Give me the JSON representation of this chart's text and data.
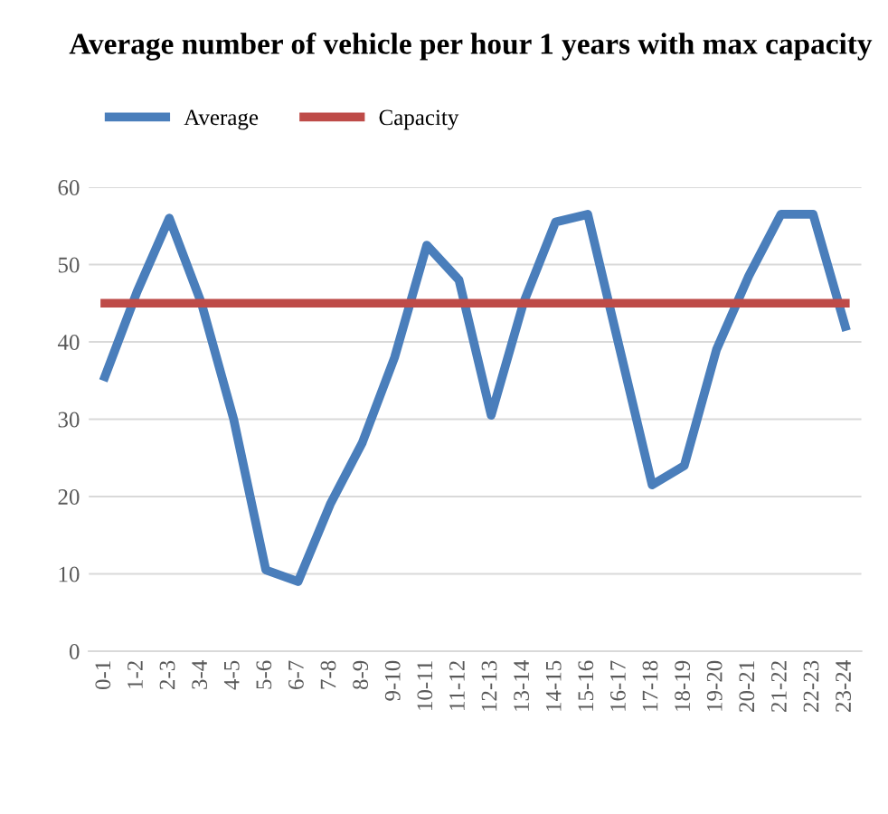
{
  "chart_data": {
    "type": "line",
    "title": "Average number of vehicle per hour 1 years with max capacity",
    "categories": [
      "0-1",
      "1-2",
      "2-3",
      "3-4",
      "4-5",
      "5-6",
      "6-7",
      "7-8",
      "8-9",
      "9-10",
      "10-11",
      "11-12",
      "12-13",
      "13-14",
      "14-15",
      "15-16",
      "16-17",
      "17-18",
      "18-19",
      "19-20",
      "20-21",
      "21-22",
      "22-23",
      "23-24"
    ],
    "series": [
      {
        "name": "Average",
        "color": "#4a7ebb",
        "values": [
          35.5,
          46.5,
          56,
          45,
          30,
          10.5,
          9,
          19,
          27,
          38,
          52.5,
          48,
          30.5,
          45,
          55.5,
          56.5,
          39,
          21.5,
          24,
          39,
          48.5,
          56.5,
          56.5,
          42
        ]
      },
      {
        "name": "Capacity",
        "color": "#be4b48",
        "values": [
          45,
          45,
          45,
          45,
          45,
          45,
          45,
          45,
          45,
          45,
          45,
          45,
          45,
          45,
          45,
          45,
          45,
          45,
          45,
          45,
          45,
          45,
          45,
          45
        ]
      }
    ],
    "ylim": [
      0,
      60
    ],
    "yticks": [
      0,
      10,
      20,
      30,
      40,
      50,
      60
    ],
    "grid": "y",
    "legend": "top left",
    "marker": "none",
    "line_style": "solid"
  }
}
